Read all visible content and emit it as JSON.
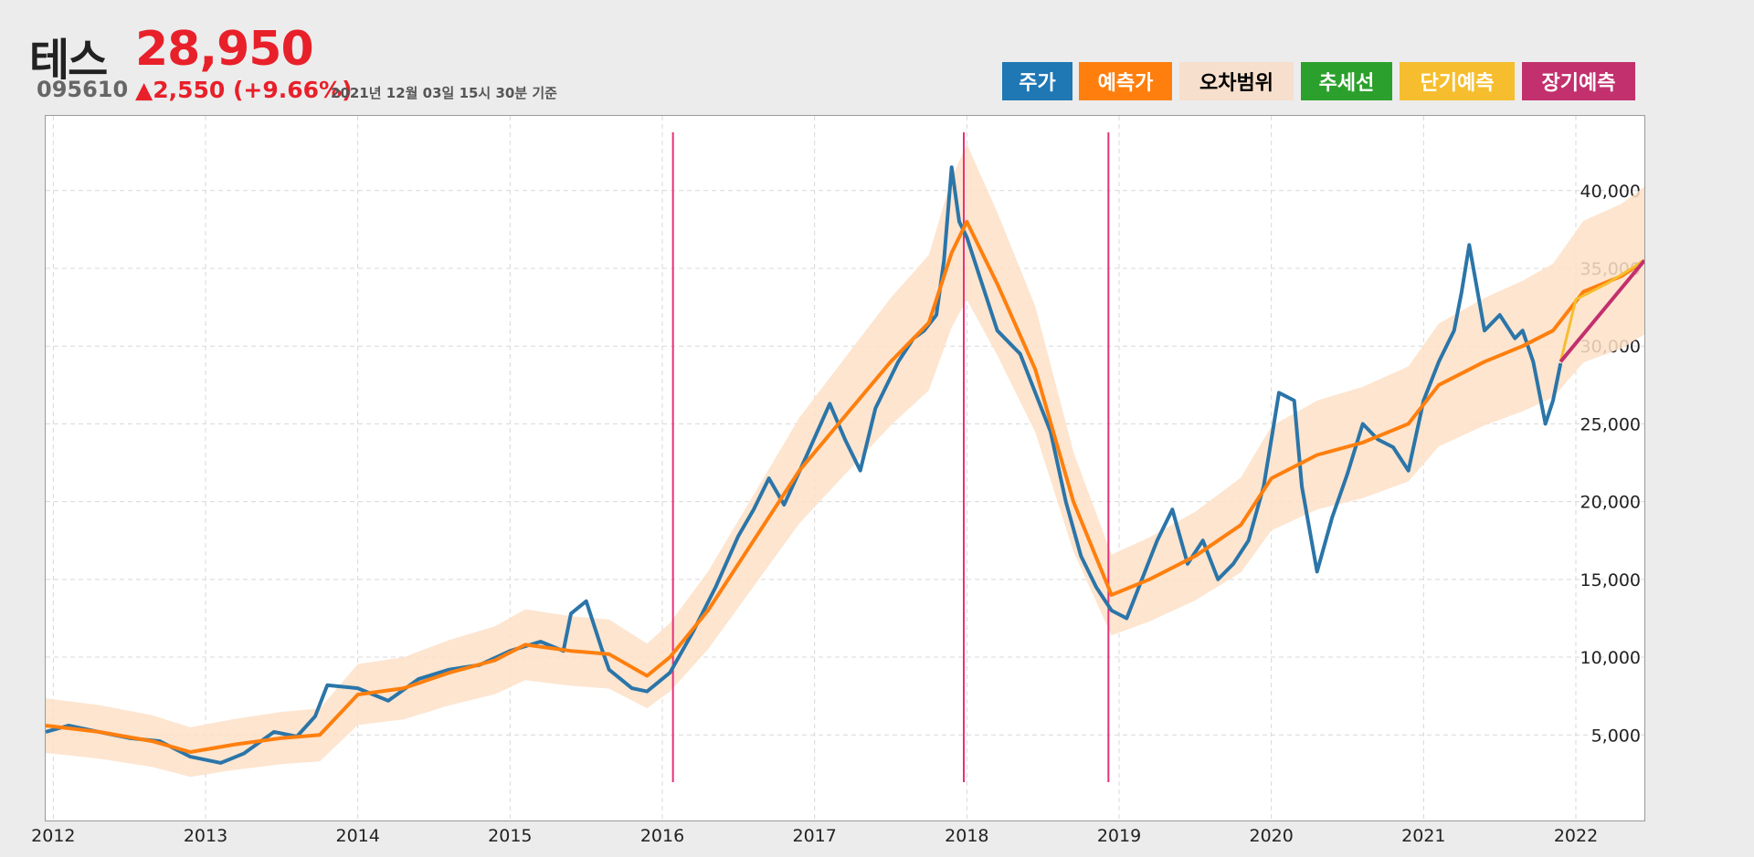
{
  "stock": {
    "name": "테스",
    "price": "28,950",
    "code": "095610",
    "change": "▲2,550 (+9.66%)",
    "timestamp": "2021년 12월 03일 15시 30분 기준"
  },
  "legend": [
    {
      "label": "주가",
      "bg": "#1f77b4",
      "fg": "#ffffff"
    },
    {
      "label": "예측가",
      "bg": "#ff7f0e",
      "fg": "#ffffff"
    },
    {
      "label": "오차범위",
      "bg": "#f6dfcc",
      "fg": "#000000"
    },
    {
      "label": "추세선",
      "bg": "#2ca02c",
      "fg": "#ffffff"
    },
    {
      "label": "단기예측",
      "bg": "#f6be2e",
      "fg": "#ffffff"
    },
    {
      "label": "장기예측",
      "bg": "#c2306e",
      "fg": "#ffffff"
    }
  ],
  "chart_data": {
    "type": "line",
    "xlim": [
      2011.95,
      2022.45
    ],
    "ylim": [
      -500,
      44800
    ],
    "x_ticks": [
      2012,
      2013,
      2014,
      2015,
      2016,
      2017,
      2018,
      2019,
      2020,
      2021,
      2022
    ],
    "y_ticks": [
      5000,
      10000,
      15000,
      20000,
      25000,
      30000,
      35000,
      40000
    ],
    "y_tick_labels": [
      "5,000",
      "10,000",
      "15,000",
      "20,000",
      "25,000",
      "30,000",
      "35,000",
      "40,000"
    ],
    "grid": true,
    "colors": {
      "price": "#2b75a8",
      "predicted": "#ff7f0e",
      "band": "#fde0c8",
      "short_term": "#f6be2e",
      "long_term": "#c2306e",
      "vline": "#e8317a"
    },
    "series": [
      {
        "name": "주가",
        "x": [
          2011.95,
          2012.1,
          2012.3,
          2012.5,
          2012.7,
          2012.9,
          2013.1,
          2013.25,
          2013.45,
          2013.6,
          2013.72,
          2013.8,
          2014.0,
          2014.2,
          2014.4,
          2014.6,
          2014.8,
          2015.0,
          2015.2,
          2015.35,
          2015.4,
          2015.5,
          2015.6,
          2015.65,
          2015.8,
          2015.9,
          2016.05,
          2016.2,
          2016.35,
          2016.5,
          2016.6,
          2016.7,
          2016.8,
          2016.95,
          2017.1,
          2017.2,
          2017.3,
          2017.4,
          2017.55,
          2017.65,
          2017.72,
          2017.8,
          2017.85,
          2017.9,
          2017.95,
          2018.0,
          2018.1,
          2018.2,
          2018.3,
          2018.35,
          2018.45,
          2018.55,
          2018.65,
          2018.75,
          2018.85,
          2018.95,
          2019.05,
          2019.15,
          2019.25,
          2019.35,
          2019.45,
          2019.55,
          2019.65,
          2019.75,
          2019.85,
          2019.95,
          2020.0,
          2020.05,
          2020.15,
          2020.2,
          2020.3,
          2020.4,
          2020.5,
          2020.6,
          2020.7,
          2020.8,
          2020.9,
          2021.0,
          2021.1,
          2021.2,
          2021.25,
          2021.3,
          2021.4,
          2021.5,
          2021.6,
          2021.65,
          2021.72,
          2021.8,
          2021.85,
          2021.9
        ],
        "y": [
          5200,
          5600,
          5200,
          4800,
          4600,
          3600,
          3200,
          3800,
          5200,
          4900,
          6200,
          8200,
          8000,
          7200,
          8600,
          9200,
          9500,
          10400,
          11000,
          10400,
          12800,
          13600,
          10600,
          9200,
          8000,
          7800,
          9000,
          11600,
          14500,
          17800,
          19500,
          21500,
          19800,
          23000,
          26300,
          24000,
          22000,
          26000,
          29000,
          30500,
          31000,
          32000,
          35500,
          41500,
          38000,
          37000,
          34000,
          31000,
          30000,
          29500,
          27000,
          24500,
          20000,
          16500,
          14500,
          13000,
          12500,
          15000,
          17500,
          19500,
          16000,
          17500,
          15000,
          16000,
          17500,
          21000,
          24000,
          27000,
          26500,
          21000,
          15500,
          19000,
          21800,
          25000,
          24000,
          23500,
          22000,
          26500,
          29000,
          31000,
          33500,
          36500,
          31000,
          32000,
          30500,
          31000,
          29000,
          25000,
          26500,
          28900
        ]
      },
      {
        "name": "예측가",
        "x": [
          2011.95,
          2012.3,
          2012.65,
          2012.9,
          2013.2,
          2013.5,
          2013.75,
          2014.0,
          2014.3,
          2014.6,
          2014.9,
          2015.1,
          2015.4,
          2015.65,
          2015.9,
          2016.05,
          2016.3,
          2016.6,
          2016.9,
          2017.2,
          2017.5,
          2017.75,
          2017.9,
          2018.0,
          2018.2,
          2018.45,
          2018.7,
          2018.95,
          2019.2,
          2019.5,
          2019.8,
          2020.0,
          2020.3,
          2020.6,
          2020.9,
          2021.1,
          2021.4,
          2021.65,
          2021.85,
          2022.05,
          2022.3,
          2022.45
        ],
        "y": [
          5600,
          5200,
          4600,
          3900,
          4400,
          4800,
          5000,
          7600,
          8000,
          9000,
          9800,
          10800,
          10400,
          10200,
          8800,
          10000,
          13000,
          17500,
          22000,
          25500,
          29000,
          31500,
          36000,
          38000,
          34000,
          28500,
          20000,
          14000,
          15000,
          16500,
          18500,
          21500,
          23000,
          23800,
          25000,
          27500,
          29000,
          30000,
          31000,
          33500,
          34500,
          35500
        ]
      },
      {
        "name": "단기예측",
        "x": [
          2021.9,
          2022.0,
          2022.2,
          2022.45
        ],
        "y": [
          29000,
          33000,
          34000,
          35500
        ]
      },
      {
        "name": "장기예측",
        "x": [
          2021.9,
          2022.45
        ],
        "y": [
          29000,
          35500
        ]
      }
    ],
    "vlines": [
      2016.07,
      2017.98,
      2018.93
    ]
  }
}
